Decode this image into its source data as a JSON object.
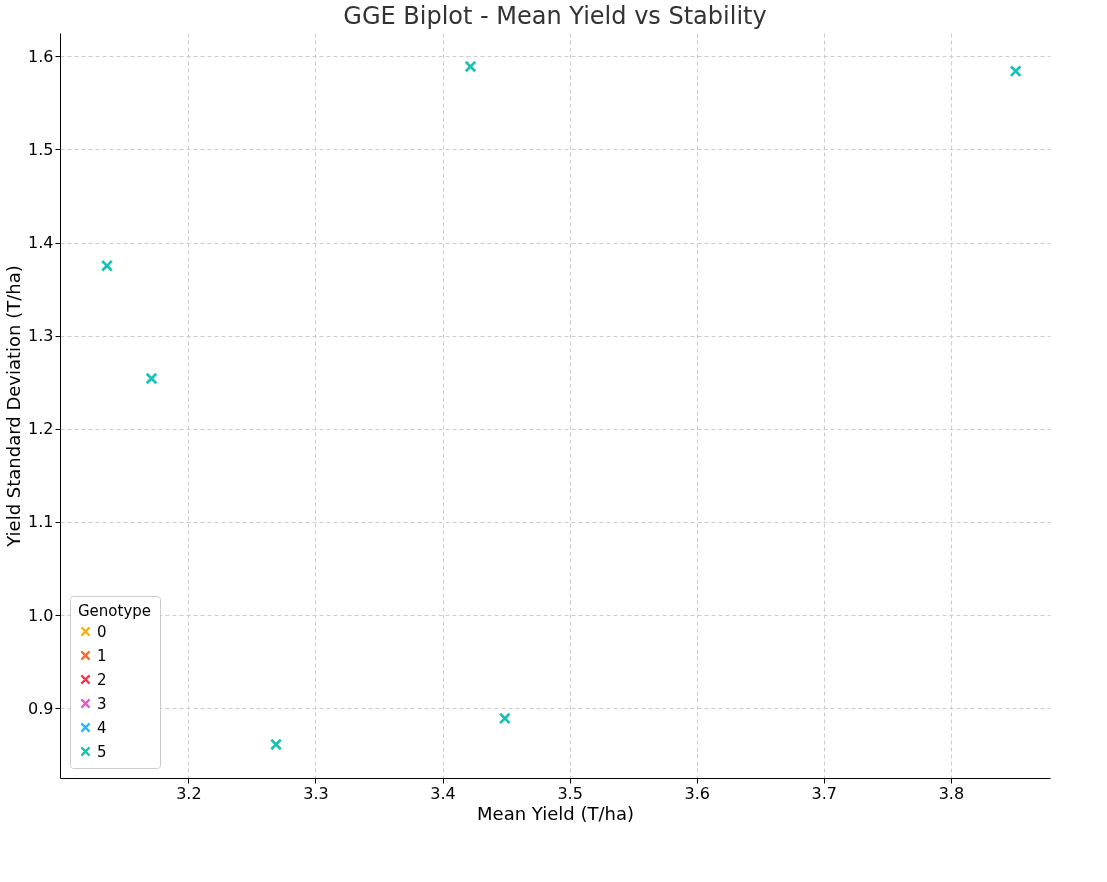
{
  "chart_data": {
    "type": "scatter",
    "title": "GGE Biplot - Mean Yield vs Stability",
    "xlabel": "Mean Yield (T/ha)",
    "ylabel": "Yield Standard Deviation (T/ha)",
    "legend_title": "Genotype",
    "x": [
      3.136,
      3.171,
      3.269,
      3.422,
      3.449,
      3.851
    ],
    "series": [
      {
        "name": "0",
        "color": "#f5b300",
        "values": [
          null,
          null,
          null,
          null,
          null,
          null
        ]
      },
      {
        "name": "1",
        "color": "#f0702a",
        "values": [
          null,
          null,
          null,
          null,
          null,
          null
        ]
      },
      {
        "name": "2",
        "color": "#ee3a4f",
        "values": [
          null,
          null,
          null,
          null,
          null,
          null
        ]
      },
      {
        "name": "3",
        "color": "#e857c9",
        "values": [
          null,
          null,
          null,
          null,
          null,
          null
        ]
      },
      {
        "name": "4",
        "color": "#29b6f6",
        "values": [
          null,
          null,
          null,
          null,
          null,
          null
        ]
      },
      {
        "name": "5",
        "color": "#16c2b6",
        "values": [
          1.375,
          1.254,
          0.861,
          1.589,
          0.889,
          1.584
        ]
      }
    ],
    "xlim": [
      3.099,
      3.878
    ],
    "xticks": [
      3.2,
      3.3,
      3.4,
      3.5,
      3.6,
      3.7,
      3.8
    ],
    "ylim": [
      0.825,
      1.625
    ],
    "yticks": [
      0.9,
      {
        "value": 1.0,
        "label": "1.0"
      },
      1.1,
      1.2,
      1.3,
      1.4,
      1.5,
      1.6
    ],
    "grid": true,
    "legend": "bottom left",
    "marker": "cross"
  }
}
